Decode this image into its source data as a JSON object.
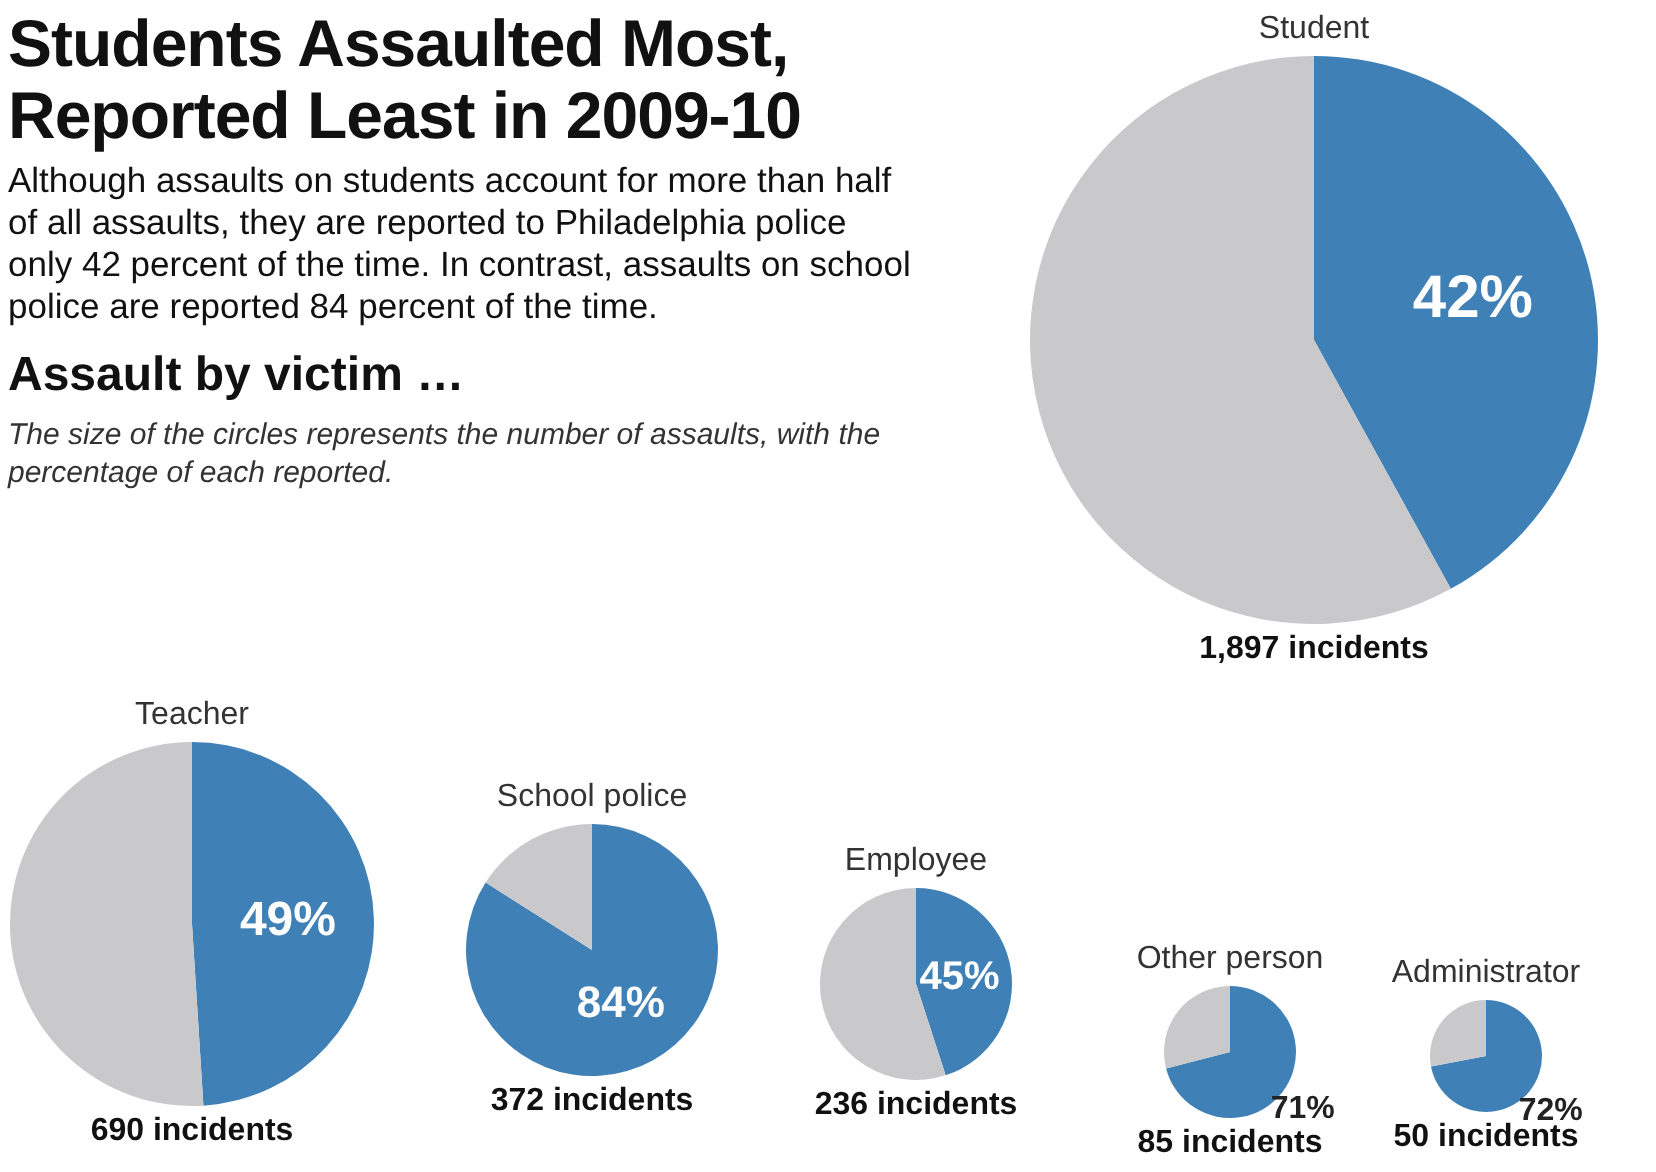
{
  "chart_data": [
    {
      "type": "other",
      "title": "Students Assaulted Most, Reported Least in 2009-10",
      "subtitle": "Although assaults on students account for more than half of all assaults, they are reported to Philadelphia police only 42 percent of the time. In contrast, assaults on school police are reported 84 percent of the time.",
      "annotations": [
        "Assault by victim …",
        "The size of the circles represents the number of assaults, with the percentage of each reported."
      ]
    },
    {
      "type": "pie",
      "title": "Student",
      "categories": [
        null,
        null
      ],
      "values": [
        42,
        58
      ],
      "colors": [
        "#3f80b6",
        "#c9c9cb"
      ],
      "value_labels": [
        "42%",
        null
      ],
      "annotations": [
        "1,897 incidents"
      ]
    },
    {
      "type": "pie",
      "title": "Teacher",
      "categories": [
        null,
        null
      ],
      "values": [
        49,
        51
      ],
      "colors": [
        "#3f80b6",
        "#c9c9cb"
      ],
      "value_labels": [
        "49%",
        null
      ],
      "annotations": [
        "690 incidents"
      ]
    },
    {
      "type": "pie",
      "title": "School police",
      "categories": [
        null,
        null
      ],
      "values": [
        84,
        16
      ],
      "colors": [
        "#3f80b6",
        "#c9c9cb"
      ],
      "value_labels": [
        "84%",
        null
      ],
      "annotations": [
        "372 incidents"
      ]
    },
    {
      "type": "pie",
      "title": "Employee",
      "categories": [
        null,
        null
      ],
      "values": [
        45,
        55
      ],
      "colors": [
        "#3f80b6",
        "#c9c9cb"
      ],
      "value_labels": [
        "45%",
        null
      ],
      "annotations": [
        "236 incidents"
      ]
    },
    {
      "type": "pie",
      "title": "Other person",
      "categories": [
        null,
        null
      ],
      "values": [
        71,
        29
      ],
      "colors": [
        "#3f80b6",
        "#c9c9cb"
      ],
      "value_labels": [
        "71%",
        null
      ],
      "annotations": [
        "85 incidents"
      ]
    },
    {
      "type": "pie",
      "title": "Administrator",
      "categories": [
        null,
        null
      ],
      "values": [
        72,
        28
      ],
      "colors": [
        "#3f80b6",
        "#c9c9cb"
      ],
      "value_labels": [
        "72%",
        null
      ],
      "annotations": [
        "50 incidents"
      ]
    }
  ]
}
